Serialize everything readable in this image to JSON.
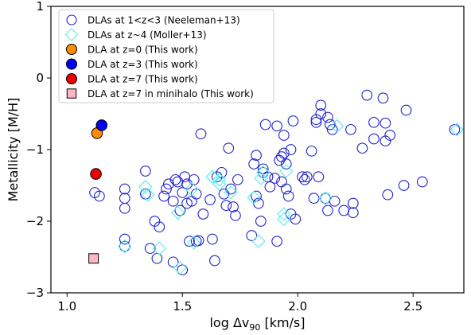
{
  "chart_data": {
    "type": "scatter",
    "xlabel": "log Δv",
    "xlabel_sub": "90",
    "xlabel_unit": " [km/s]",
    "ylabel": "Metallicity [M/H]",
    "xlim": [
      0.93,
      2.72
    ],
    "ylim": [
      -3,
      1
    ],
    "xticks": [
      1.0,
      1.5,
      2.0,
      2.5
    ],
    "xtick_labels": [
      "1.0",
      "1.5",
      "2.0",
      "2.5"
    ],
    "yticks": [
      -3,
      -2,
      -1,
      0,
      1
    ],
    "ytick_labels": [
      "−3",
      "−2",
      "−1",
      "0",
      "1"
    ],
    "grid": false,
    "legend_position": "upper-left",
    "series": [
      {
        "name": "DLAs at 1<z<3 (Neeleman+13)",
        "marker": "circle-open",
        "color": "#2222cc",
        "points": [
          [
            1.12,
            -1.6
          ],
          [
            1.14,
            -1.65
          ],
          [
            1.25,
            -1.55
          ],
          [
            1.25,
            -1.68
          ],
          [
            1.25,
            -1.82
          ],
          [
            1.25,
            -2.25
          ],
          [
            1.25,
            -2.35
          ],
          [
            1.34,
            -1.3
          ],
          [
            1.34,
            -1.62
          ],
          [
            1.36,
            -2.38
          ],
          [
            1.38,
            -2.0
          ],
          [
            1.39,
            -2.52
          ],
          [
            1.4,
            -2.08
          ],
          [
            1.42,
            -1.65
          ],
          [
            1.43,
            -1.55
          ],
          [
            1.44,
            -1.48
          ],
          [
            1.46,
            -2.57
          ],
          [
            1.46,
            -1.72
          ],
          [
            1.47,
            -1.42
          ],
          [
            1.48,
            -1.45
          ],
          [
            1.49,
            -1.85
          ],
          [
            1.5,
            -1.6
          ],
          [
            1.5,
            -2.68
          ],
          [
            1.51,
            -1.38
          ],
          [
            1.52,
            -1.48
          ],
          [
            1.52,
            -1.75
          ],
          [
            1.53,
            -2.28
          ],
          [
            1.54,
            -1.72
          ],
          [
            1.55,
            -1.42
          ],
          [
            1.56,
            -1.62
          ],
          [
            1.56,
            -2.28
          ],
          [
            1.57,
            -2.27
          ],
          [
            1.58,
            -0.78
          ],
          [
            1.59,
            -1.9
          ],
          [
            1.62,
            -1.7
          ],
          [
            1.63,
            -2.25
          ],
          [
            1.64,
            -2.55
          ],
          [
            1.65,
            -1.38
          ],
          [
            1.67,
            -1.32
          ],
          [
            1.68,
            -1.62
          ],
          [
            1.69,
            -1.78
          ],
          [
            1.7,
            -0.98
          ],
          [
            1.71,
            -1.55
          ],
          [
            1.72,
            -1.8
          ],
          [
            1.73,
            -1.92
          ],
          [
            1.74,
            -1.42
          ],
          [
            1.8,
            -2.2
          ],
          [
            1.81,
            -1.2
          ],
          [
            1.82,
            -1.65
          ],
          [
            1.82,
            -1.08
          ],
          [
            1.83,
            -1.75
          ],
          [
            1.84,
            -2.0
          ],
          [
            1.85,
            -1.27
          ],
          [
            1.85,
            -1.32
          ],
          [
            1.86,
            -0.65
          ],
          [
            1.87,
            -1.38
          ],
          [
            1.88,
            -1.52
          ],
          [
            1.9,
            -1.4
          ],
          [
            1.91,
            -0.67
          ],
          [
            1.91,
            -2.28
          ],
          [
            1.92,
            -1.15
          ],
          [
            1.93,
            -1.1
          ],
          [
            1.93,
            -1.45
          ],
          [
            1.94,
            -1.05
          ],
          [
            1.94,
            -0.8
          ],
          [
            1.95,
            -1.55
          ],
          [
            1.95,
            -1.2
          ],
          [
            1.96,
            -1.65
          ],
          [
            1.97,
            -1.0
          ],
          [
            1.97,
            -1.9
          ],
          [
            1.98,
            -0.6
          ],
          [
            1.99,
            -1.97
          ],
          [
            2.02,
            -1.38
          ],
          [
            2.03,
            -1.42
          ],
          [
            2.04,
            -1.38
          ],
          [
            2.06,
            -1.02
          ],
          [
            2.07,
            -1.68
          ],
          [
            2.08,
            -0.58
          ],
          [
            2.08,
            -0.62
          ],
          [
            2.09,
            -1.38
          ],
          [
            2.1,
            -0.38
          ],
          [
            2.1,
            -0.5
          ],
          [
            2.12,
            -1.68
          ],
          [
            2.13,
            -1.85
          ],
          [
            2.13,
            -0.55
          ],
          [
            2.14,
            -0.65
          ],
          [
            2.15,
            -0.72
          ],
          [
            2.16,
            -1.72
          ],
          [
            2.2,
            -1.85
          ],
          [
            2.23,
            -0.72
          ],
          [
            2.24,
            -1.75
          ],
          [
            2.24,
            -1.88
          ],
          [
            2.28,
            -0.98
          ],
          [
            2.3,
            -0.24
          ],
          [
            2.33,
            -0.85
          ],
          [
            2.33,
            -0.62
          ],
          [
            2.37,
            -0.28
          ],
          [
            2.38,
            -0.88
          ],
          [
            2.38,
            -0.63
          ],
          [
            2.39,
            -1.63
          ],
          [
            2.4,
            -0.8
          ],
          [
            2.46,
            -1.5
          ],
          [
            2.47,
            -0.45
          ],
          [
            2.54,
            -1.45
          ],
          [
            2.68,
            -0.72
          ]
        ]
      },
      {
        "name": "DLAs at z~4 (Moller+13)",
        "marker": "diamond-open",
        "color": "#55eeee",
        "points": [
          [
            1.25,
            -2.35
          ],
          [
            1.34,
            -1.52
          ],
          [
            1.35,
            -1.63
          ],
          [
            1.4,
            -2.38
          ],
          [
            1.48,
            -1.88
          ],
          [
            1.49,
            -2.65
          ],
          [
            1.54,
            -1.55
          ],
          [
            1.55,
            -2.3
          ],
          [
            1.63,
            -1.38
          ],
          [
            1.66,
            -1.42
          ],
          [
            1.66,
            -1.48
          ],
          [
            1.71,
            -1.6
          ],
          [
            1.81,
            -1.67
          ],
          [
            1.83,
            -2.28
          ],
          [
            1.84,
            -1.4
          ],
          [
            1.85,
            -1.32
          ],
          [
            1.94,
            -1.9
          ],
          [
            1.94,
            -1.97
          ],
          [
            1.95,
            -1.3
          ],
          [
            2.12,
            -1.68
          ],
          [
            2.17,
            -0.67
          ],
          [
            2.69,
            -0.72
          ]
        ]
      },
      {
        "name": "DLA at z=0 (This work)",
        "marker": "circle-filled",
        "color": "#ff8c00",
        "points": [
          [
            1.13,
            -0.77
          ]
        ]
      },
      {
        "name": "DLA at z=3 (This work)",
        "marker": "circle-filled",
        "color": "#0000ee",
        "points": [
          [
            1.15,
            -0.66
          ]
        ]
      },
      {
        "name": "DLA at z=7 (This work)",
        "marker": "circle-filled",
        "color": "#ee0000",
        "points": [
          [
            1.125,
            -1.34
          ]
        ]
      },
      {
        "name": "DLA at z=7 in minihalo (This work)",
        "marker": "square-filled",
        "color": "#ffb6c1",
        "points": [
          [
            1.115,
            -2.52
          ]
        ]
      }
    ]
  }
}
